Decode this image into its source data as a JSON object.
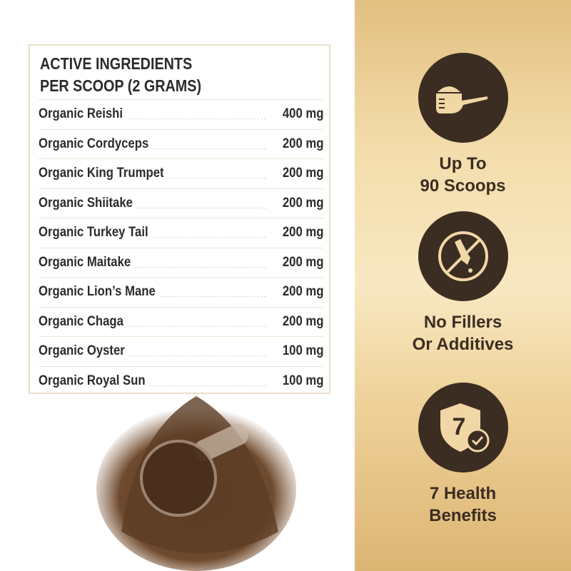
{
  "table": {
    "title_line1": "ACTIVE INGREDIENTS",
    "title_line2": "PER SCOOP (2 GRAMS)",
    "rows": [
      {
        "name": "Organic Reishi",
        "amount": "400 mg"
      },
      {
        "name": "Organic Cordyceps",
        "amount": "200 mg"
      },
      {
        "name": "Organic King Trumpet",
        "amount": "200 mg"
      },
      {
        "name": "Organic Shiitake",
        "amount": "200 mg"
      },
      {
        "name": "Organic Turkey Tail",
        "amount": "200 mg"
      },
      {
        "name": "Organic Maitake",
        "amount": "200 mg"
      },
      {
        "name": "Organic Lion’s Mane",
        "amount": "200 mg"
      },
      {
        "name": "Organic Chaga",
        "amount": "200 mg"
      },
      {
        "name": "Organic Oyster",
        "amount": "100 mg"
      },
      {
        "name": "Organic Royal Sun",
        "amount": "100 mg"
      }
    ]
  },
  "features": [
    {
      "icon": "scoop-icon",
      "line1": "Up To",
      "line2": "90 Scoops"
    },
    {
      "icon": "no-dropper-icon",
      "line1": "No Fillers",
      "line2": "Or Additives"
    },
    {
      "icon": "shield-seven-check-icon",
      "line1": "7 Health",
      "line2": "Benefits",
      "badge": "7"
    }
  ],
  "colors": {
    "icon_bg": "#3b2d21",
    "gold": "#f3dcaa",
    "icon_fg": "#f1d7a6"
  }
}
